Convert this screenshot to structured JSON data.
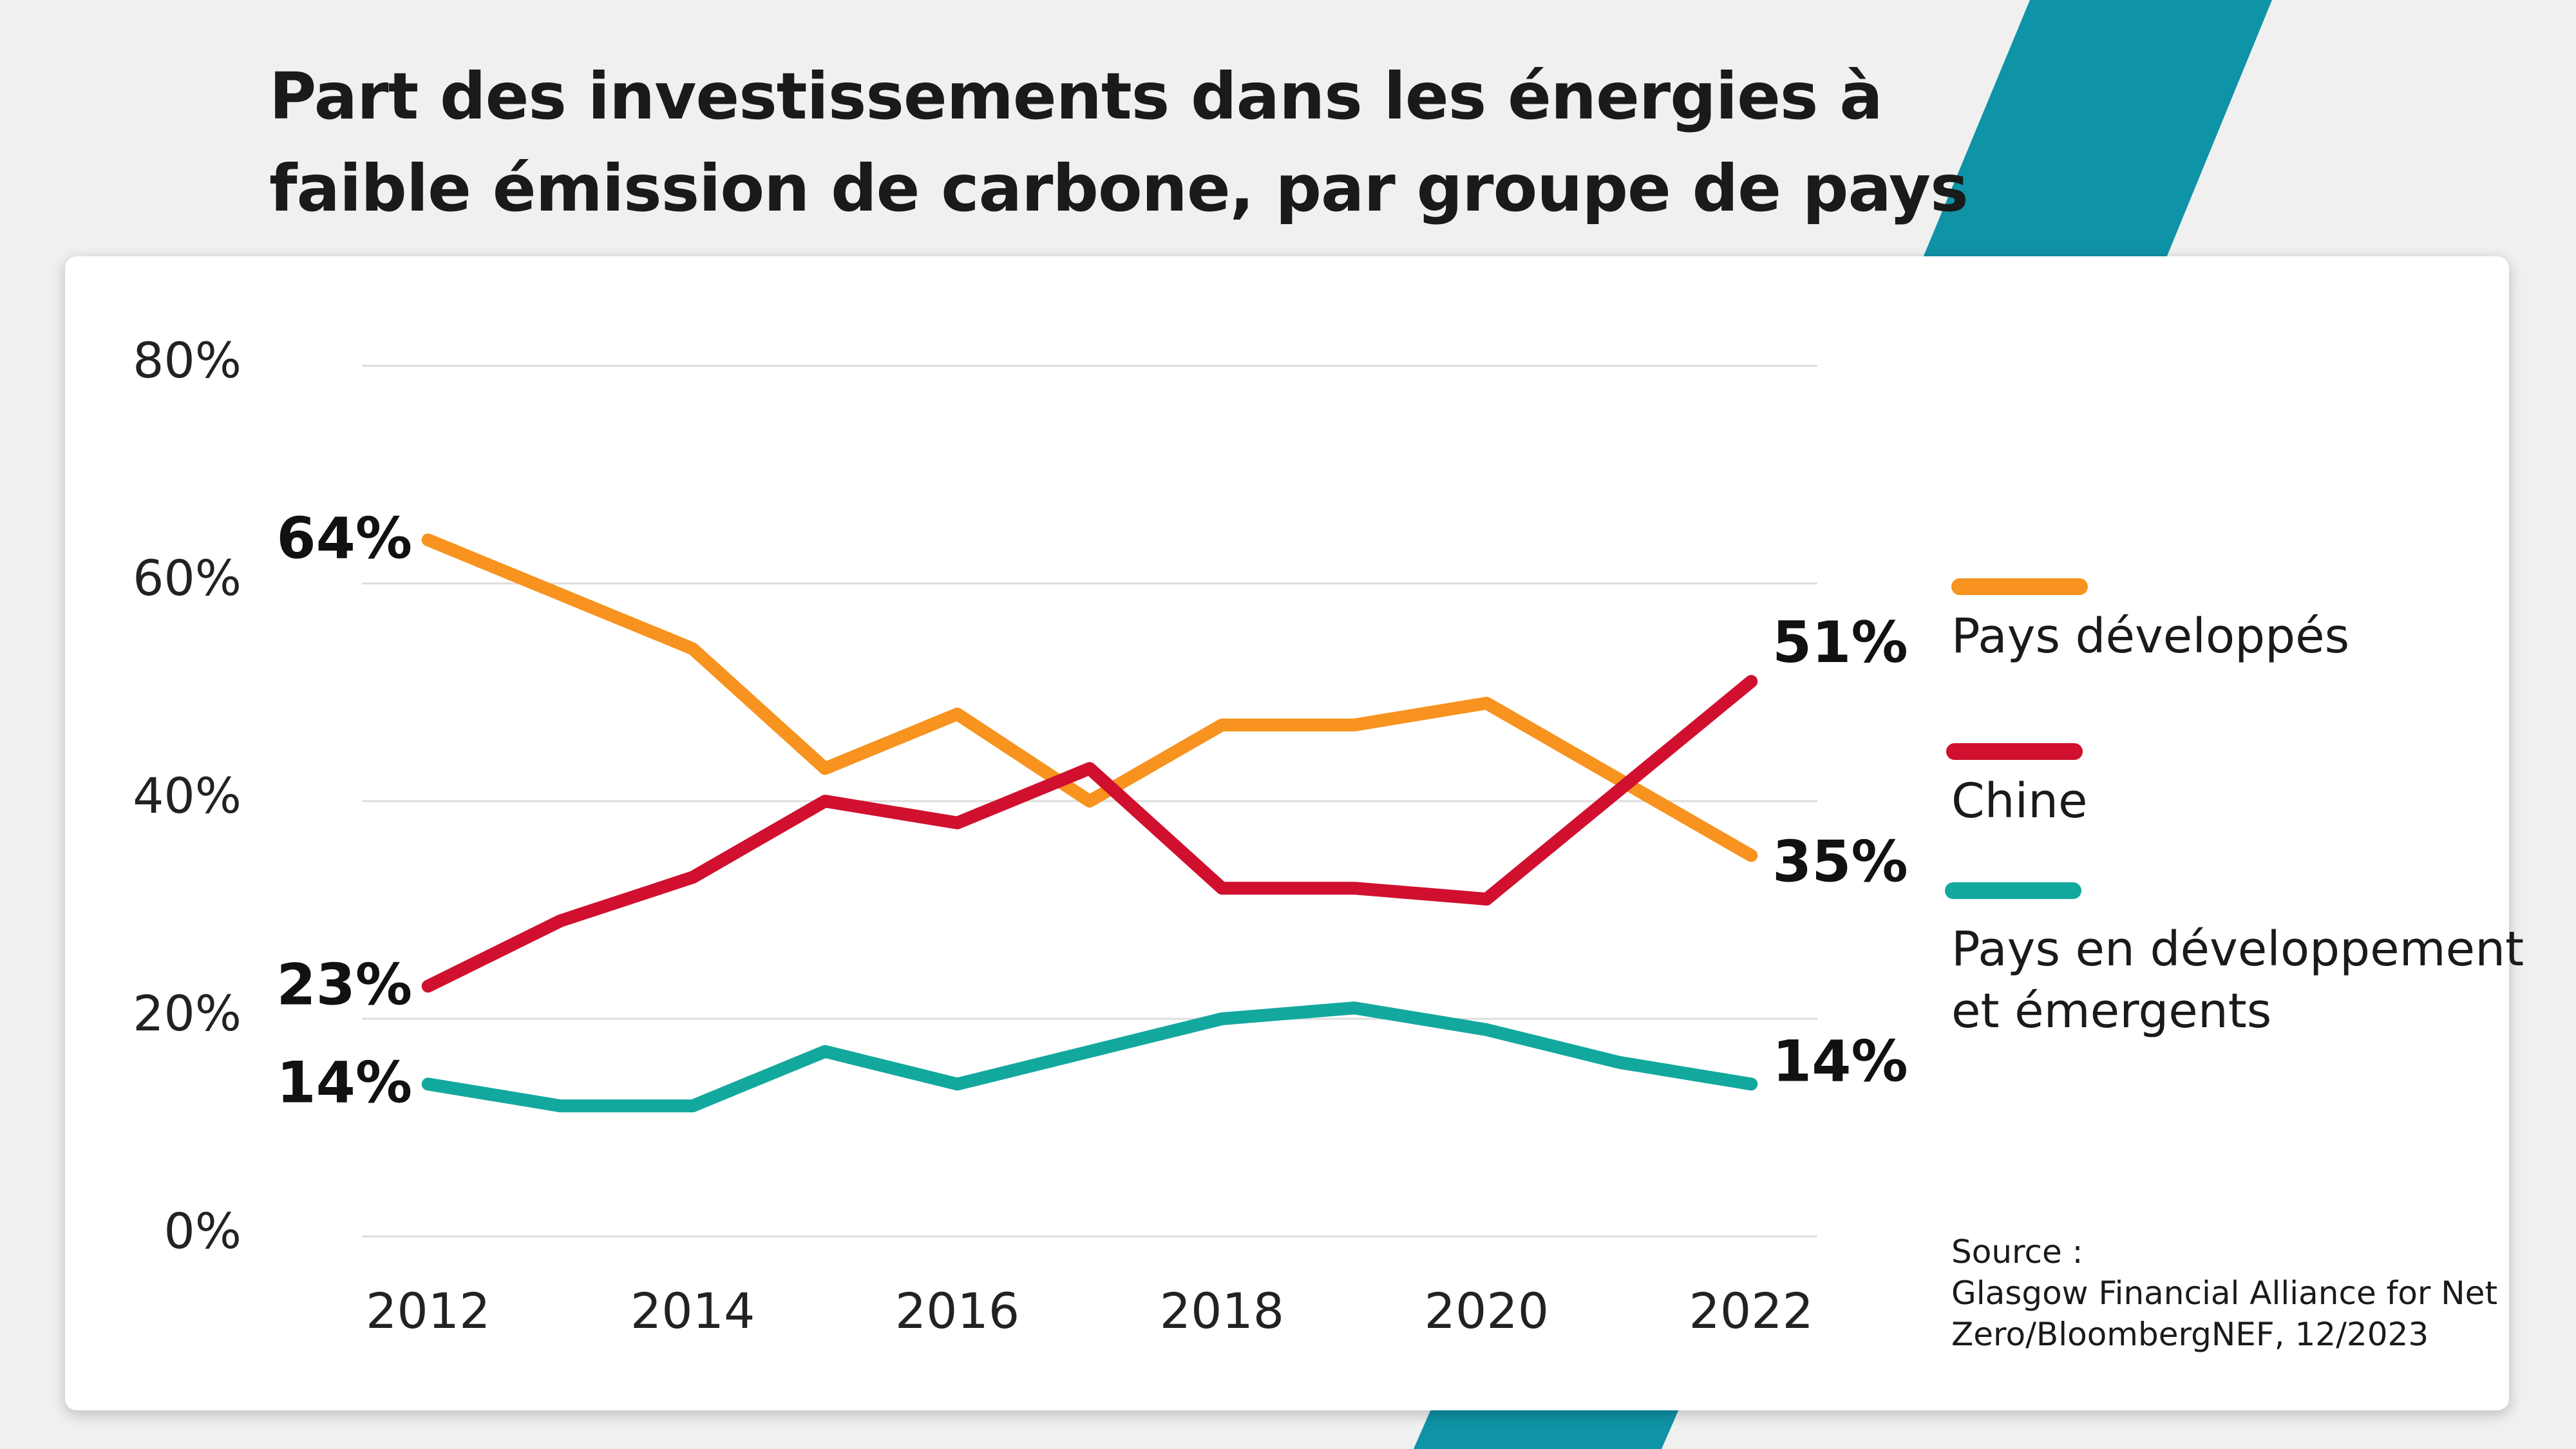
{
  "title": "Part des investissements dans les énergies à faible émission de carbone, par groupe de pays",
  "colors": {
    "developed": "#f7931e",
    "china": "#d0102e",
    "emerging": "#13a89e",
    "accent_band": "#0f93a6",
    "grid": "#dddddd",
    "background": "#f0f0f0"
  },
  "legend": {
    "items": [
      {
        "label": "Pays développés"
      },
      {
        "label": "Chine"
      },
      {
        "label": "Pays en développement\net émergents"
      }
    ]
  },
  "source": {
    "lines": [
      "Source :",
      "Glasgow Financial Alliance for Net",
      "Zero/BloombergNEF, 12/2023"
    ]
  },
  "chart_data": {
    "type": "line",
    "title": "Part des investissements dans les énergies à faible émission de carbone, par groupe de pays",
    "xlabel": "",
    "ylabel": "",
    "x": [
      2012,
      2013,
      2014,
      2015,
      2016,
      2017,
      2018,
      2019,
      2020,
      2021,
      2022
    ],
    "xticks": [
      "2012",
      "2014",
      "2016",
      "2018",
      "2020",
      "2022"
    ],
    "yticks": [
      "0%",
      "20%",
      "40%",
      "60%",
      "80%"
    ],
    "ylim": [
      0,
      80
    ],
    "grid": true,
    "legend_position": "right",
    "series": [
      {
        "name": "Pays développés",
        "color": "#f7931e",
        "values": [
          64,
          59,
          54,
          43,
          48,
          40,
          47,
          47,
          49,
          42,
          35
        ],
        "start_label": "64%",
        "end_label": "35%"
      },
      {
        "name": "Chine",
        "color": "#d0102e",
        "values": [
          23,
          29,
          33,
          40,
          38,
          43,
          32,
          32,
          31,
          41,
          51
        ],
        "start_label": "23%",
        "end_label": "51%"
      },
      {
        "name": "Pays en développement et émergents",
        "color": "#13a89e",
        "values": [
          14,
          12,
          12,
          17,
          14,
          17,
          20,
          21,
          19,
          16,
          14
        ],
        "start_label": "14%",
        "end_label": "14%"
      }
    ]
  }
}
